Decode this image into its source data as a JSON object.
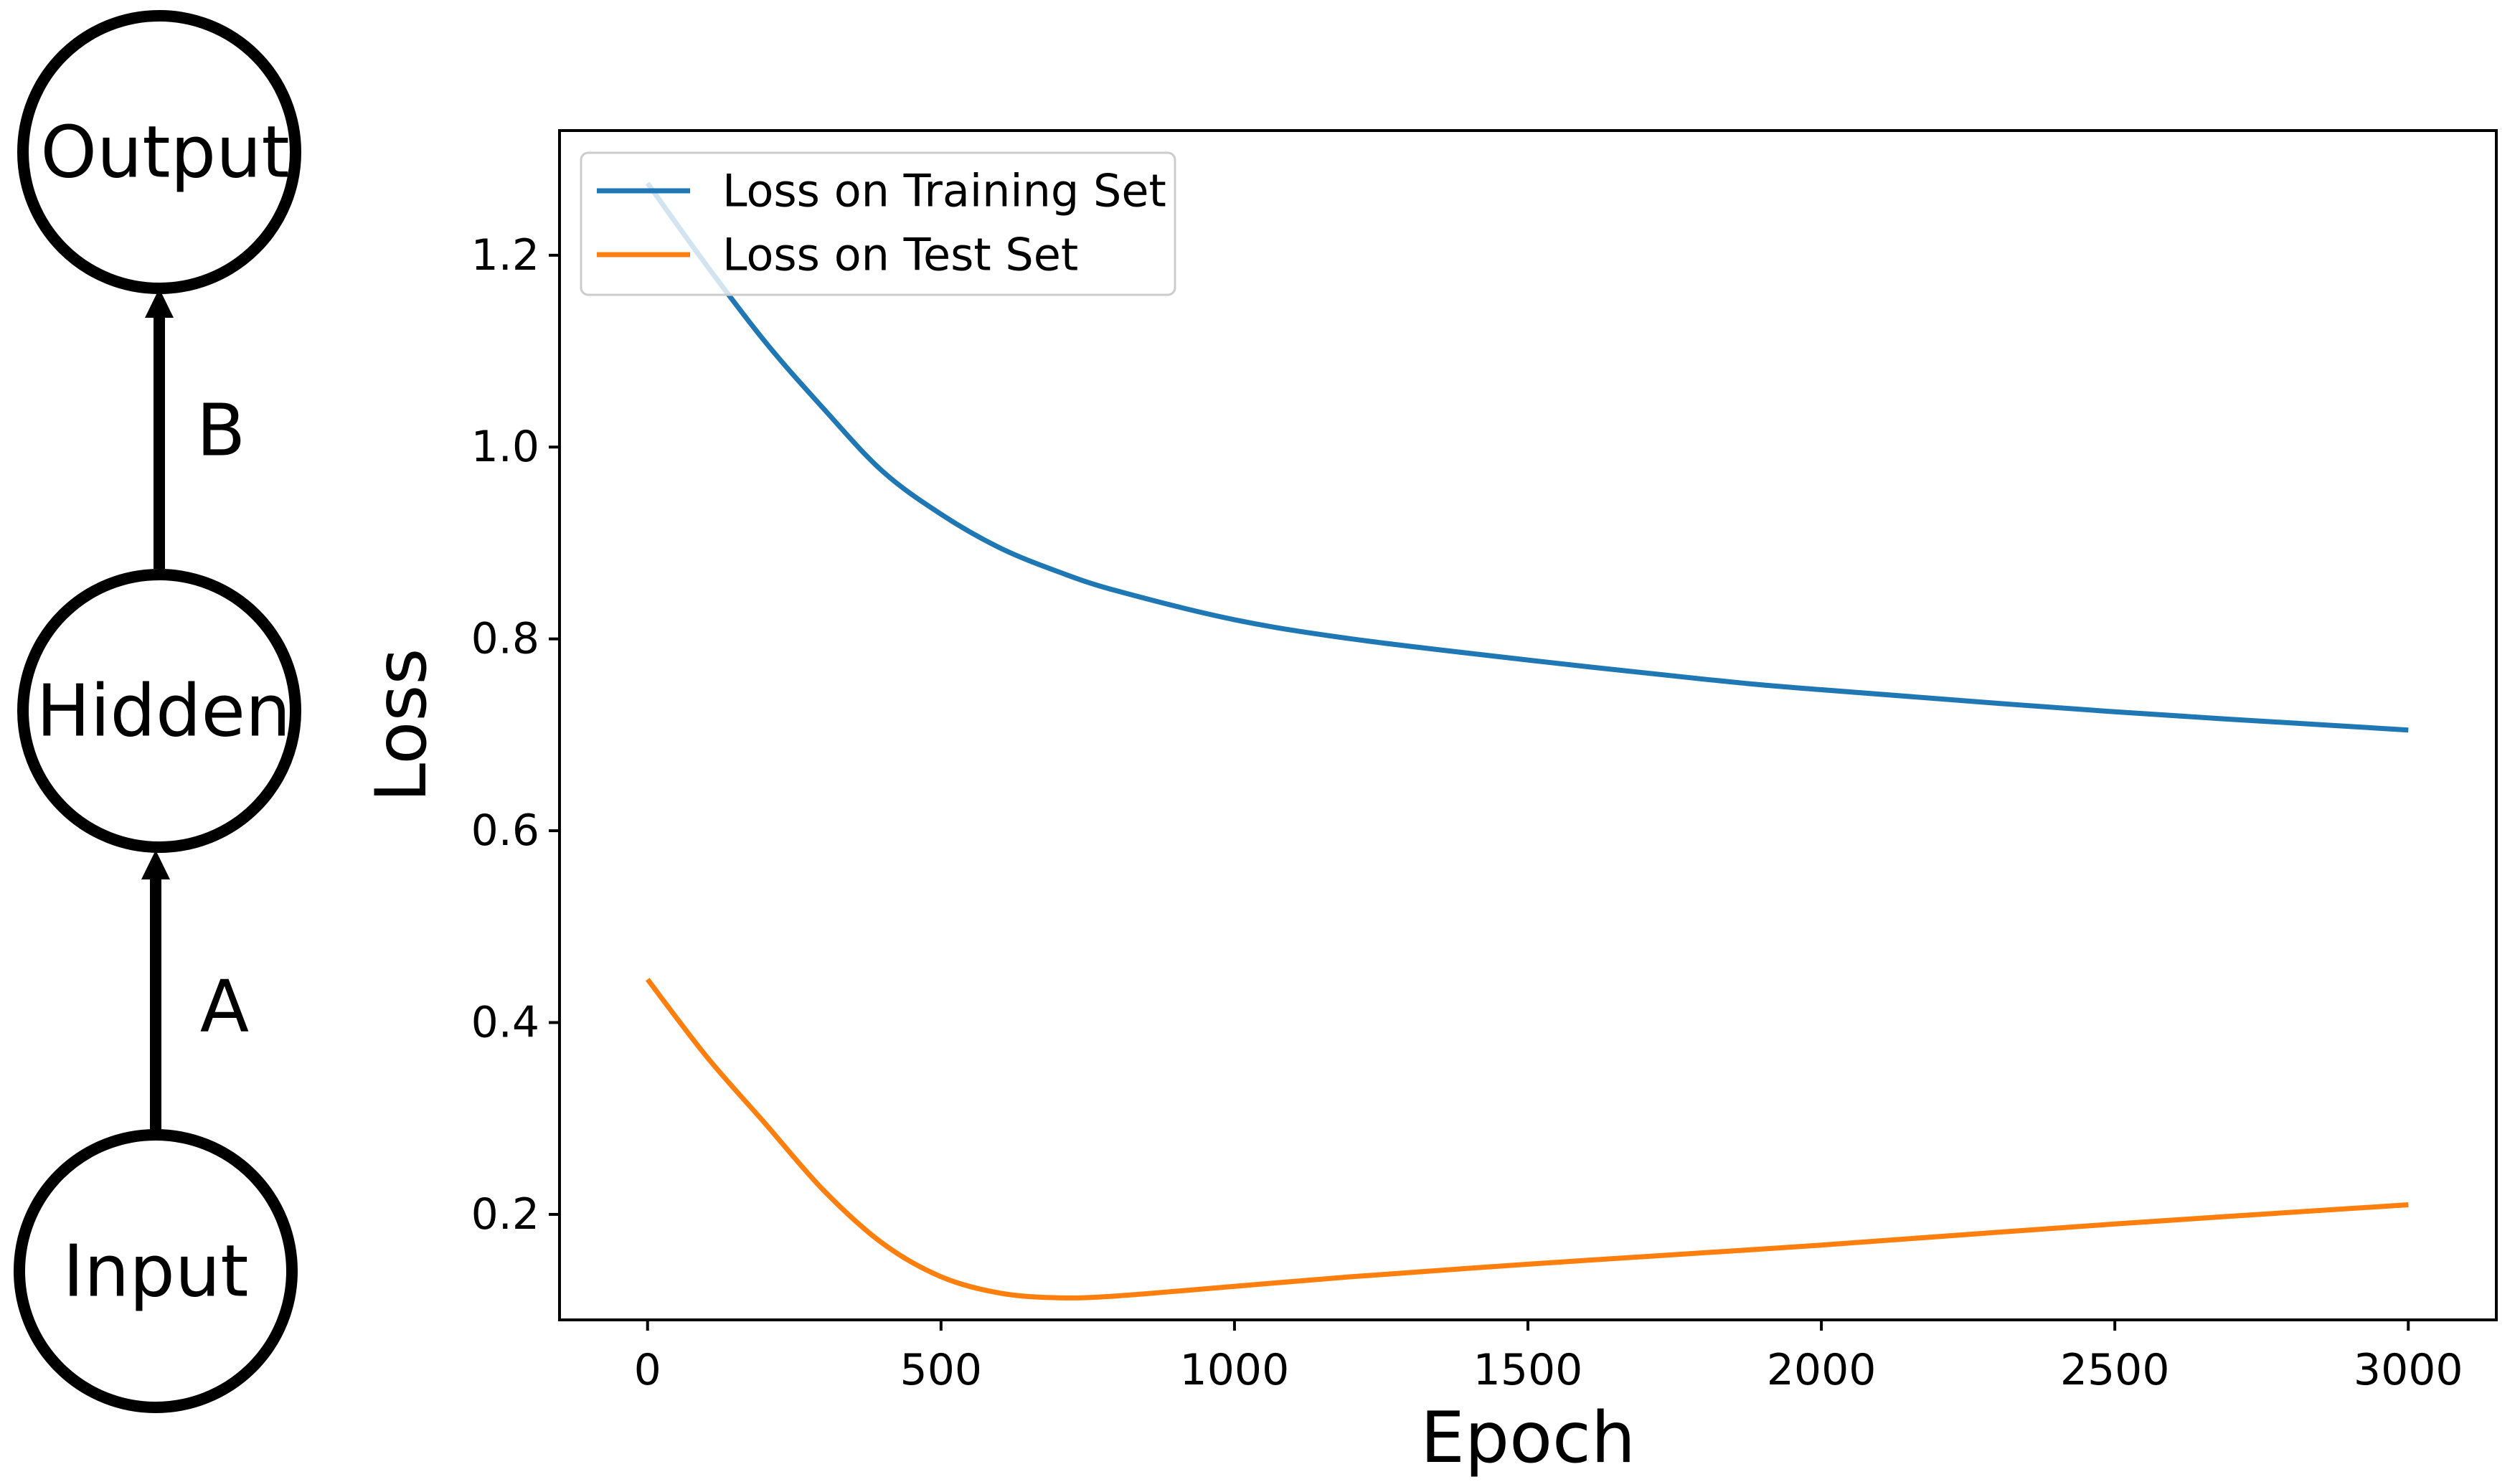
{
  "diagram": {
    "nodes": [
      {
        "id": "output",
        "label": "Output"
      },
      {
        "id": "hidden",
        "label": "Hidden"
      },
      {
        "id": "input",
        "label": "Input"
      }
    ],
    "edges": [
      {
        "from": "input",
        "to": "hidden",
        "label": "A"
      },
      {
        "from": "hidden",
        "to": "output",
        "label": "B"
      }
    ]
  },
  "chart_data": {
    "type": "line",
    "title": "",
    "xlabel": "Epoch",
    "ylabel": "Loss",
    "xlim": [
      -150,
      3150
    ],
    "ylim": [
      0.09,
      1.33
    ],
    "xticks": [
      0,
      500,
      1000,
      1500,
      2000,
      2500,
      3000
    ],
    "yticks": [
      0.2,
      0.4,
      0.6,
      0.8,
      1.0,
      1.2
    ],
    "ytick_labels": [
      "0.2",
      "0.4",
      "0.6",
      "0.8",
      "1.0",
      "1.2"
    ],
    "grid": false,
    "legend_position": "upper-left",
    "series": [
      {
        "name": "Loss on Training Set",
        "color": "#1f77b4",
        "x": [
          0,
          100,
          200,
          300,
          400,
          500,
          600,
          700,
          800,
          1000,
          1200,
          1500,
          1800,
          2000,
          2500,
          3000
        ],
        "y": [
          1.275,
          1.19,
          1.11,
          1.04,
          0.975,
          0.93,
          0.895,
          0.87,
          0.85,
          0.82,
          0.8,
          0.778,
          0.758,
          0.747,
          0.724,
          0.705
        ]
      },
      {
        "name": "Loss on Test Set",
        "color": "#ff7f0e",
        "x": [
          0,
          100,
          200,
          300,
          400,
          500,
          600,
          700,
          800,
          1000,
          1200,
          1500,
          1800,
          2000,
          2500,
          3000
        ],
        "y": [
          0.445,
          0.365,
          0.295,
          0.225,
          0.17,
          0.135,
          0.118,
          0.113,
          0.115,
          0.125,
          0.135,
          0.148,
          0.16,
          0.168,
          0.19,
          0.21
        ]
      }
    ]
  }
}
